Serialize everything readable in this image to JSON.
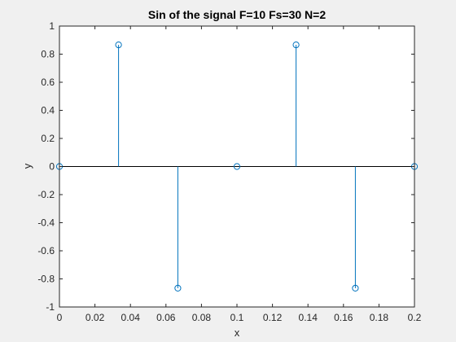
{
  "chart_data": {
    "type": "stem",
    "title": "Sin of the signal F=10 Fs=30 N=2",
    "xlabel": "x",
    "ylabel": "y",
    "xlim": [
      0,
      0.2
    ],
    "ylim": [
      -1,
      1
    ],
    "x_ticks": [
      "0",
      "0.02",
      "0.04",
      "0.06",
      "0.08",
      "0.1",
      "0.12",
      "0.14",
      "0.16",
      "0.18",
      "0.2"
    ],
    "y_ticks": [
      "1",
      "0.8",
      "0.6",
      "0.4",
      "0.2",
      "0",
      "-0.2",
      "-0.4",
      "-0.6",
      "-0.8",
      "-1"
    ],
    "grid": false,
    "series": [
      {
        "x": [
          0,
          0.0333,
          0.0667,
          0.1,
          0.1333,
          0.1667,
          0.2
        ],
        "values": [
          0,
          0.866,
          -0.866,
          0,
          0.866,
          -0.866,
          0
        ],
        "color": "#0072bd",
        "marker": "circle"
      }
    ]
  }
}
